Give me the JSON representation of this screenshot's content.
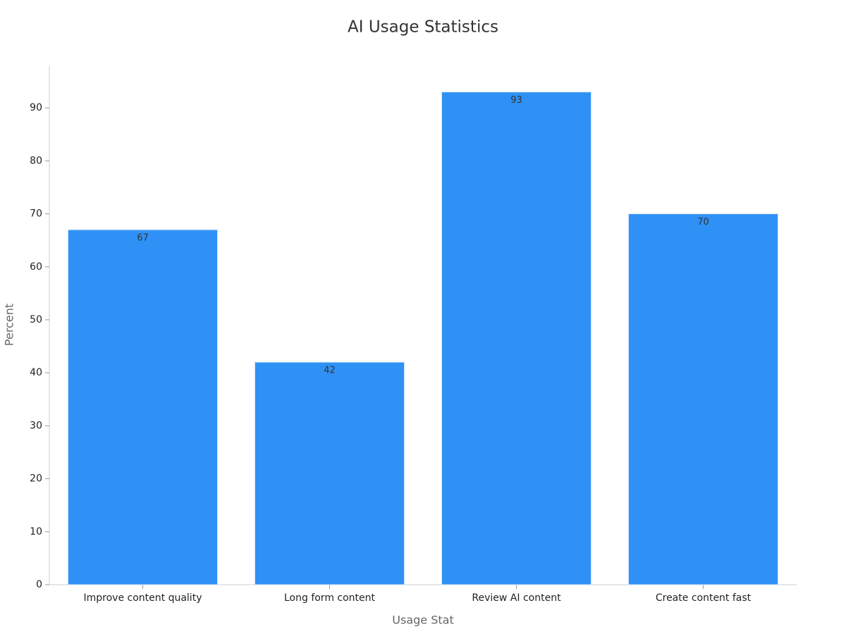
{
  "chart_data": {
    "type": "bar",
    "title": "AI Usage Statistics",
    "x_label": "Usage Stat",
    "y_label": "Percent",
    "categories": [
      "Improve content quality",
      "Long form content",
      "Review AI content",
      "Create content fast"
    ],
    "values": [
      67,
      42,
      93,
      70
    ],
    "color": "#2f91f5",
    "ylim": [
      0,
      98
    ],
    "yticks": [
      0,
      10,
      20,
      30,
      40,
      50,
      60,
      70,
      80,
      90
    ],
    "grid": false
  }
}
